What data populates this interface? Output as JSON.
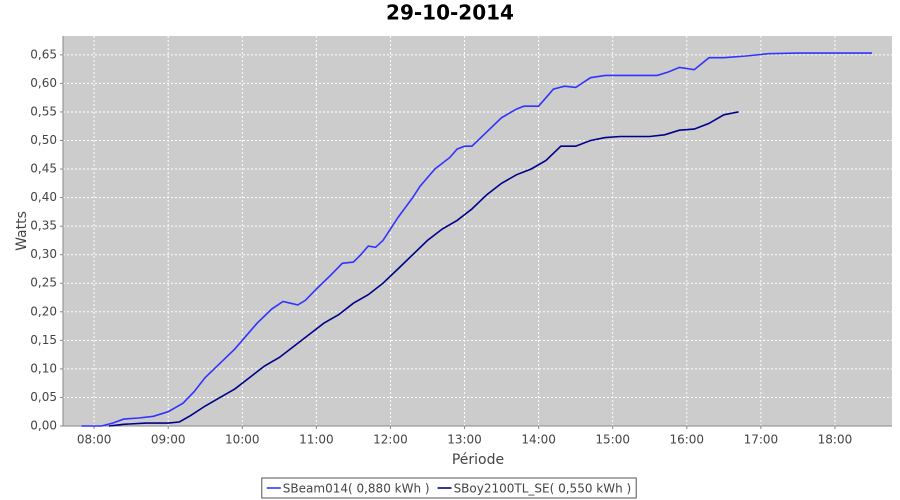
{
  "chart_data": {
    "type": "line",
    "title": "29-10-2014",
    "x_label": "Période",
    "y_label": "Watts",
    "grid": true,
    "legend": "bottom",
    "xlim": [
      7.58,
      18.77
    ],
    "xticks": [
      {
        "value": 8,
        "label": "08:00"
      },
      {
        "value": 9,
        "label": "09:00"
      },
      {
        "value": 10,
        "label": "10:00"
      },
      {
        "value": 11,
        "label": "11:00"
      },
      {
        "value": 12,
        "label": "12:00"
      },
      {
        "value": 13,
        "label": "13:00"
      },
      {
        "value": 14,
        "label": "14:00"
      },
      {
        "value": 15,
        "label": "15:00"
      },
      {
        "value": 16,
        "label": "16:00"
      },
      {
        "value": 17,
        "label": "17:00"
      },
      {
        "value": 18,
        "label": "18:00"
      }
    ],
    "ylim": [
      0,
      0.683
    ],
    "yticks": [
      {
        "value": 0,
        "label": "0,00"
      },
      {
        "value": 0.05,
        "label": "0,05"
      },
      {
        "value": 0.1,
        "label": "0,10"
      },
      {
        "value": 0.15,
        "label": "0,15"
      },
      {
        "value": 0.2,
        "label": "0,20"
      },
      {
        "value": 0.25,
        "label": "0,25"
      },
      {
        "value": 0.3,
        "label": "0,30"
      },
      {
        "value": 0.35,
        "label": "0,35"
      },
      {
        "value": 0.4,
        "label": "0,40"
      },
      {
        "value": 0.45,
        "label": "0,45"
      },
      {
        "value": 0.5,
        "label": "0,50"
      },
      {
        "value": 0.55,
        "label": "0,55"
      },
      {
        "value": 0.6,
        "label": "0,60"
      },
      {
        "value": 0.65,
        "label": "0,65"
      }
    ],
    "series": [
      {
        "name": "SBeam014( 0,880 kWh )",
        "color": "#3333ff",
        "x": [
          7.83,
          8.1,
          8.25,
          8.4,
          8.6,
          8.8,
          9.0,
          9.2,
          9.35,
          9.5,
          9.7,
          9.9,
          10.0,
          10.2,
          10.4,
          10.55,
          10.65,
          10.75,
          10.85,
          11.0,
          11.2,
          11.35,
          11.5,
          11.6,
          11.7,
          11.8,
          11.9,
          12.1,
          12.3,
          12.4,
          12.6,
          12.8,
          12.9,
          13.0,
          13.1,
          13.3,
          13.5,
          13.7,
          13.8,
          14.0,
          14.1,
          14.2,
          14.35,
          14.5,
          14.7,
          14.9,
          15.3,
          15.6,
          15.75,
          15.9,
          16.1,
          16.3,
          16.5,
          16.8,
          17.1,
          17.5,
          18.0,
          18.5
        ],
        "values": [
          0,
          0,
          0.005,
          0.012,
          0.014,
          0.017,
          0.025,
          0.04,
          0.06,
          0.085,
          0.11,
          0.135,
          0.15,
          0.18,
          0.205,
          0.218,
          0.215,
          0.212,
          0.22,
          0.24,
          0.265,
          0.285,
          0.287,
          0.3,
          0.315,
          0.313,
          0.325,
          0.365,
          0.4,
          0.42,
          0.45,
          0.47,
          0.485,
          0.49,
          0.49,
          0.515,
          0.54,
          0.555,
          0.56,
          0.56,
          0.575,
          0.59,
          0.595,
          0.593,
          0.61,
          0.614,
          0.614,
          0.614,
          0.62,
          0.628,
          0.624,
          0.645,
          0.645,
          0.648,
          0.652,
          0.653,
          0.653,
          0.653
        ]
      },
      {
        "name": "SBoy2100TL_SE( 0,550 kWh )",
        "color": "#00008b",
        "x": [
          8.2,
          8.4,
          8.7,
          9.0,
          9.15,
          9.3,
          9.5,
          9.7,
          9.9,
          10.1,
          10.3,
          10.5,
          10.7,
          10.9,
          11.1,
          11.3,
          11.5,
          11.7,
          11.9,
          12.1,
          12.3,
          12.5,
          12.7,
          12.9,
          13.1,
          13.3,
          13.5,
          13.7,
          13.9,
          14.1,
          14.3,
          14.5,
          14.7,
          14.9,
          15.1,
          15.5,
          15.7,
          15.9,
          16.1,
          16.3,
          16.5,
          16.7
        ],
        "values": [
          0,
          0.003,
          0.005,
          0.005,
          0.007,
          0.018,
          0.035,
          0.05,
          0.065,
          0.085,
          0.105,
          0.12,
          0.14,
          0.16,
          0.18,
          0.195,
          0.215,
          0.23,
          0.25,
          0.275,
          0.3,
          0.325,
          0.345,
          0.36,
          0.38,
          0.405,
          0.425,
          0.44,
          0.45,
          0.465,
          0.49,
          0.49,
          0.5,
          0.505,
          0.507,
          0.507,
          0.51,
          0.518,
          0.52,
          0.53,
          0.545,
          0.55
        ]
      }
    ]
  }
}
